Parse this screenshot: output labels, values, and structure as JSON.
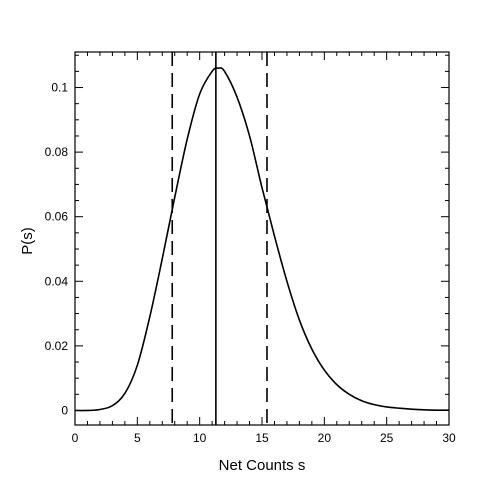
{
  "chart_data": {
    "type": "line",
    "title": "",
    "xlabel": "Net Counts s",
    "ylabel": "P(s)",
    "xlim": [
      0,
      30
    ],
    "ylim": [
      -0.0045,
      0.111
    ],
    "grid": false,
    "x_ticks": [
      0,
      5,
      10,
      15,
      20,
      25,
      30
    ],
    "x_tick_labels": [
      "0",
      "5",
      "10",
      "15",
      "20",
      "25",
      "30"
    ],
    "y_ticks": [
      0,
      0.02,
      0.04,
      0.06,
      0.08,
      0.1
    ],
    "y_tick_labels": [
      "0",
      "0.02",
      "0.04",
      "0.06",
      "0.08",
      "0.1"
    ],
    "series": [
      {
        "x": [
          0,
          1,
          2,
          3,
          4,
          5,
          6,
          7,
          8,
          9,
          10,
          11,
          11.5,
          12,
          13,
          14,
          15,
          16,
          17,
          18,
          19,
          20,
          21,
          22,
          23,
          24,
          25,
          26,
          27,
          28,
          29,
          30
        ],
        "y": [
          0.0,
          0.0,
          0.0003,
          0.0015,
          0.0053,
          0.014,
          0.029,
          0.047,
          0.066,
          0.084,
          0.098,
          0.105,
          0.106,
          0.105,
          0.097,
          0.085,
          0.069,
          0.054,
          0.04,
          0.028,
          0.019,
          0.0125,
          0.008,
          0.005,
          0.003,
          0.0018,
          0.0011,
          0.0007,
          0.0004,
          0.0002,
          0.0001,
          0.0001
        ],
        "color": "#000000",
        "style": "solid"
      }
    ],
    "vlines": [
      {
        "x": 7.8,
        "style": "dashed"
      },
      {
        "x": 11.3,
        "style": "solid"
      },
      {
        "x": 15.4,
        "style": "dashed"
      }
    ]
  }
}
